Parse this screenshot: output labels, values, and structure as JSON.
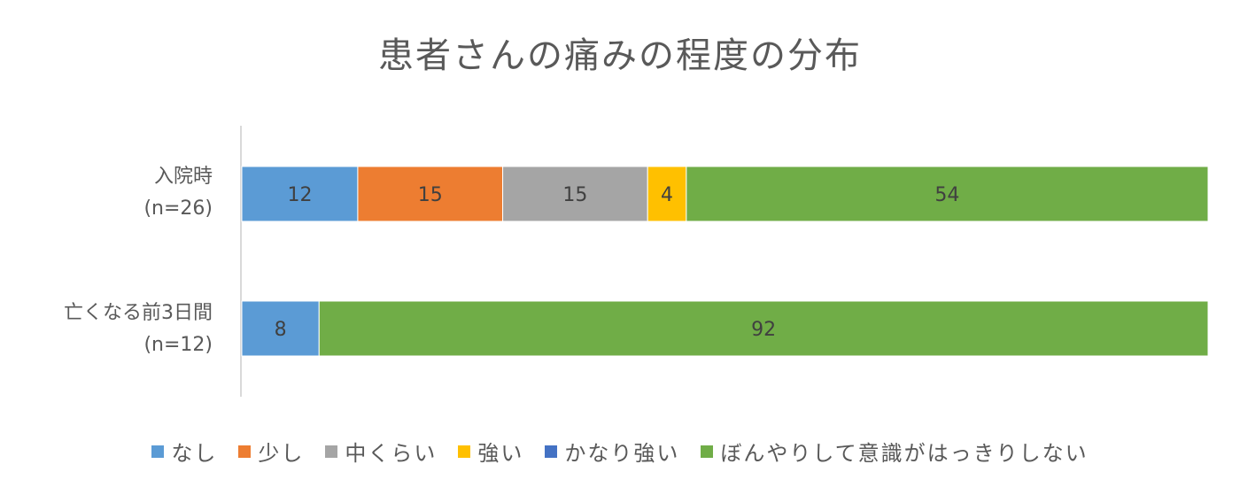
{
  "chart_data": {
    "type": "bar",
    "orientation": "horizontal",
    "stacked": true,
    "title": "患者さんの痛みの程度の分布",
    "categories": [
      {
        "name": "入院時",
        "n": "(n=26)"
      },
      {
        "name": "亡くなる前3日間",
        "n": "(n=12)"
      }
    ],
    "series": [
      {
        "name": "なし",
        "color": "#5B9BD5",
        "values": [
          12,
          8
        ]
      },
      {
        "name": "少し",
        "color": "#ED7D31",
        "values": [
          15,
          0
        ]
      },
      {
        "name": "中くらい",
        "color": "#A5A5A5",
        "values": [
          15,
          0
        ]
      },
      {
        "name": "強い",
        "color": "#FFC000",
        "values": [
          4,
          0
        ]
      },
      {
        "name": "かなり強い",
        "color": "#4472C4",
        "values": [
          0,
          0
        ]
      },
      {
        "name": "ぼんやりして意識がはっきりしない",
        "color": "#70AD47",
        "values": [
          54,
          92
        ]
      }
    ],
    "xlim": [
      0,
      100
    ],
    "grid": false,
    "legend_position": "bottom"
  }
}
